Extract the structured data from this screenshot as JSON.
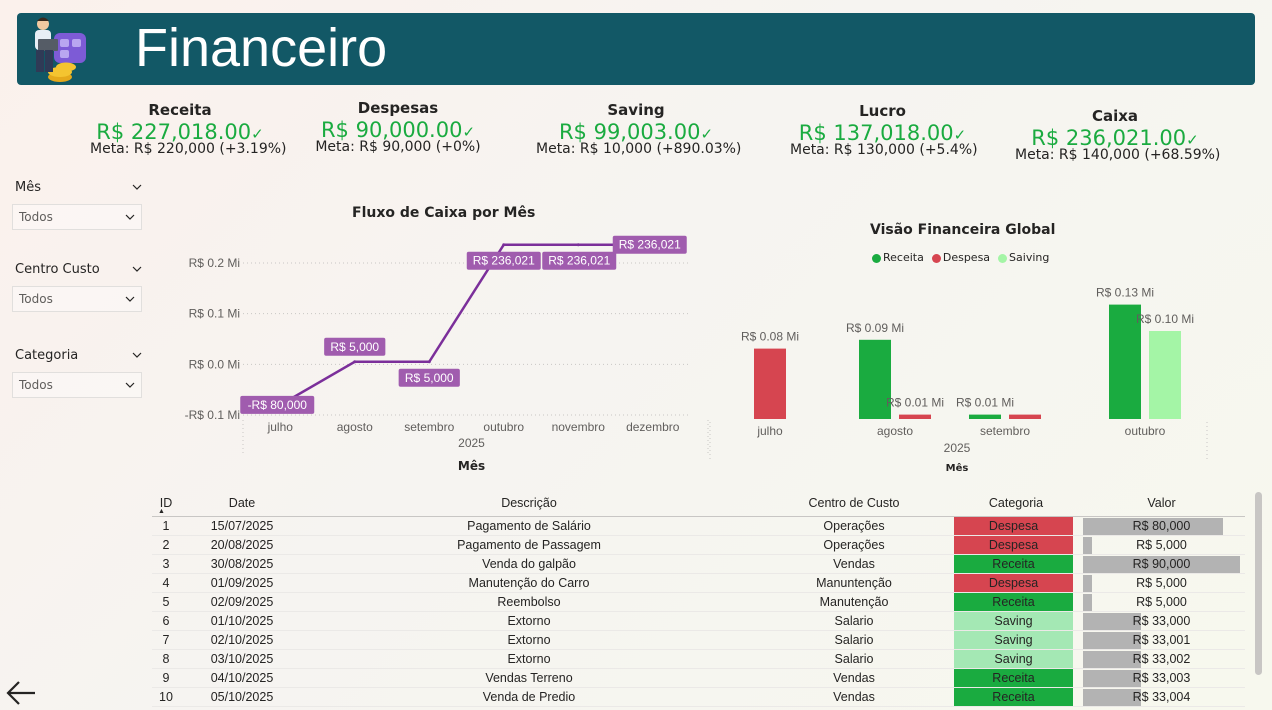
{
  "header": {
    "title": "Financeiro"
  },
  "kpis": [
    {
      "title": "Receita",
      "value": "R$ 227,018.00",
      "meta": "Meta: R$ 220,000 (+3.19%)"
    },
    {
      "title": "Despesas",
      "value": "R$ 90,000.00",
      "meta": "Meta: R$ 90,000 (+0%)"
    },
    {
      "title": "Saving",
      "value": "R$ 99,003.00",
      "meta": "Meta: R$ 10,000 (+890.03%)"
    },
    {
      "title": "Lucro",
      "value": "R$ 137,018.00",
      "meta": "Meta: R$ 130,000 (+5.4%)"
    },
    {
      "title": "Caixa",
      "value": "R$ 236,021.00",
      "meta": "Meta: R$ 140,000 (+68.59%)"
    }
  ],
  "kpi_check": "✓",
  "slicers": [
    {
      "label": "Mês",
      "value": "Todos"
    },
    {
      "label": "Centro Custo",
      "value": "Todos"
    },
    {
      "label": "Categoria",
      "value": "Todos"
    }
  ],
  "colors": {
    "header": "#125866",
    "good": "#1aab40",
    "line": "#7b2f9a",
    "receita": "#1aab40",
    "despesa": "#d64550",
    "saving": "#a4f5a6"
  },
  "chart_data": [
    {
      "type": "line",
      "title": "Fluxo de Caixa por Mês",
      "categories": [
        "julho",
        "agosto",
        "setembro",
        "outubro",
        "novembro",
        "dezembro"
      ],
      "xlabel": "Mês",
      "x_sublabel": "2025",
      "y_ticks": [
        "R$ 0.2 Mi",
        "R$ 0.1 Mi",
        "R$ 0.0 Mi",
        "-R$ 0.1 Mi"
      ],
      "y_tick_values": [
        0.2,
        0.1,
        0.0,
        -0.1
      ],
      "ylim": [
        -0.1,
        0.2
      ],
      "values": [
        -80000,
        5000,
        5000,
        236021,
        236021,
        236021
      ],
      "data_labels": [
        "-R$ 80,000",
        "R$ 5,000",
        "R$ 5,000",
        "R$ 236,021",
        "R$ 236,021",
        "R$ 236,021"
      ],
      "grid": true
    },
    {
      "type": "bar",
      "title": "Visão Financeira Global",
      "categories": [
        "julho",
        "agosto",
        "setembro",
        "outubro"
      ],
      "xlabel": "Mês",
      "x_sublabel": "2025",
      "series": [
        {
          "name": "Receita",
          "values": [
            0,
            0.09,
            0.005,
            0.13
          ],
          "labels": [
            "",
            "R$ 0.09 Mi",
            "R$ 0.01 Mi",
            "R$ 0.13 Mi"
          ]
        },
        {
          "name": "Despesa",
          "values": [
            0.08,
            0.005,
            0.005,
            0
          ],
          "labels": [
            "R$ 0.08 Mi",
            "R$ 0.01 Mi",
            "",
            ""
          ]
        },
        {
          "name": "Saiving",
          "values": [
            0,
            0,
            0,
            0.1
          ],
          "labels": [
            "",
            "",
            "",
            "R$ 0.10 Mi"
          ]
        }
      ],
      "legend_position": "top-center"
    }
  ],
  "table": {
    "columns": [
      "ID",
      "Date",
      "Descrição",
      "Centro de Custo",
      "Categoria",
      "Valor"
    ],
    "max_value": 90000,
    "rows": [
      {
        "id": "1",
        "date": "15/07/2025",
        "desc": "Pagamento de Salário",
        "cc": "Operações",
        "cat": "Despesa",
        "valor": "R$ 80,000",
        "num": 80000
      },
      {
        "id": "2",
        "date": "20/08/2025",
        "desc": "Pagamento de Passagem",
        "cc": "Operações",
        "cat": "Despesa",
        "valor": "R$ 5,000",
        "num": 5000
      },
      {
        "id": "3",
        "date": "30/08/2025",
        "desc": "Venda do galpão",
        "cc": "Vendas",
        "cat": "Receita",
        "valor": "R$ 90,000",
        "num": 90000
      },
      {
        "id": "4",
        "date": "01/09/2025",
        "desc": "Manutenção do Carro",
        "cc": "Manuntenção",
        "cat": "Despesa",
        "valor": "R$ 5,000",
        "num": 5000
      },
      {
        "id": "5",
        "date": "02/09/2025",
        "desc": "Reembolso",
        "cc": "Manutenção",
        "cat": "Receita",
        "valor": "R$ 5,000",
        "num": 5000
      },
      {
        "id": "6",
        "date": "01/10/2025",
        "desc": "Extorno",
        "cc": "Salario",
        "cat": "Saving",
        "valor": "R$ 33,000",
        "num": 33000
      },
      {
        "id": "7",
        "date": "02/10/2025",
        "desc": "Extorno",
        "cc": "Salario",
        "cat": "Saving",
        "valor": "R$ 33,001",
        "num": 33001
      },
      {
        "id": "8",
        "date": "03/10/2025",
        "desc": "Extorno",
        "cc": "Salario",
        "cat": "Saving",
        "valor": "R$ 33,002",
        "num": 33002
      },
      {
        "id": "9",
        "date": "04/10/2025",
        "desc": "Vendas Terreno",
        "cc": "Vendas",
        "cat": "Receita",
        "valor": "R$ 33,003",
        "num": 33003
      },
      {
        "id": "10",
        "date": "05/10/2025",
        "desc": "Venda de Predio",
        "cc": "Vendas",
        "cat": "Receita",
        "valor": "R$ 33,004",
        "num": 33004
      }
    ]
  }
}
